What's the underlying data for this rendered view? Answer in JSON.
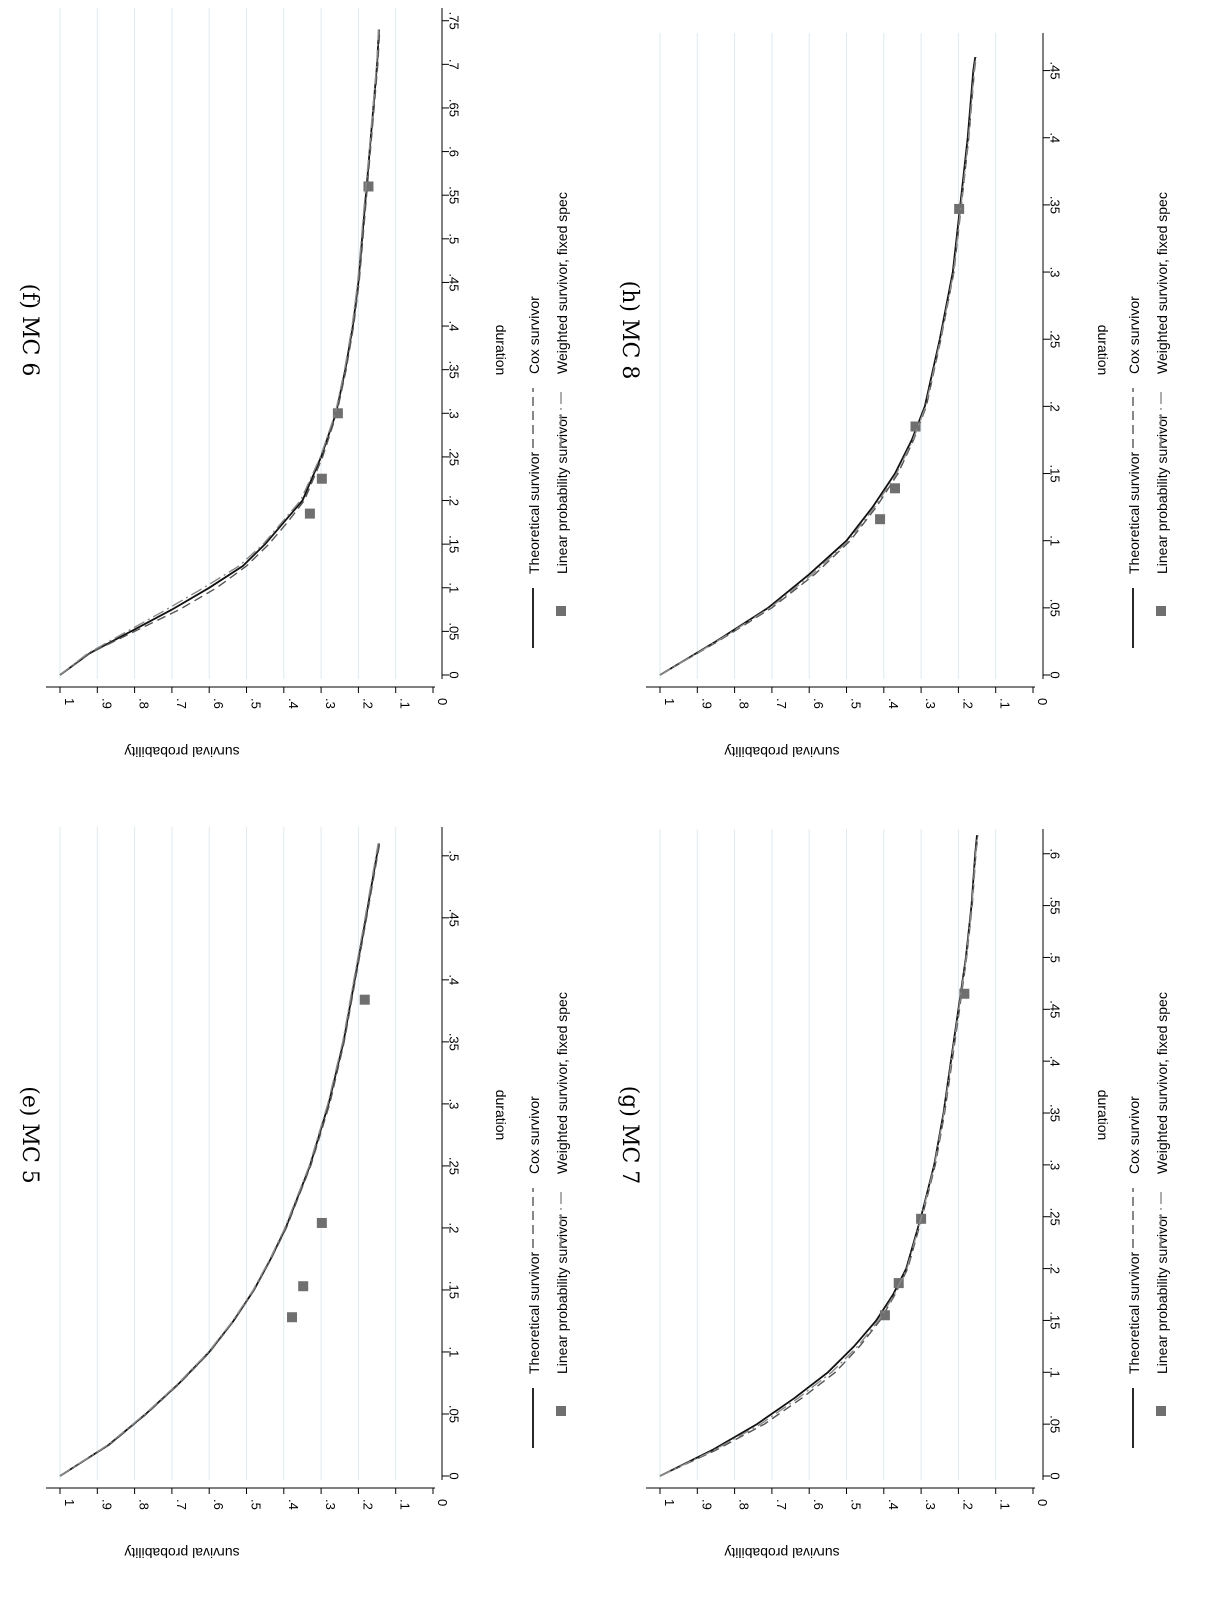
{
  "chart_data": [
    {
      "type": "line",
      "title": "(e) MC 5",
      "xlabel": "duration",
      "ylabel": "survival probability",
      "xlim": [
        0,
        0.52
      ],
      "ylim": [
        0,
        1
      ],
      "xticks": [
        0,
        0.05,
        0.1,
        0.15,
        0.2,
        0.25,
        0.3,
        0.35,
        0.4,
        0.45,
        0.5
      ],
      "xtick_labels": [
        "0",
        ".05",
        ".1",
        ".15",
        ".2",
        ".25",
        ".3",
        ".35",
        ".4",
        ".45",
        ".5"
      ],
      "yticks": [
        0,
        0.1,
        0.2,
        0.3,
        0.4,
        0.5,
        0.6,
        0.7,
        0.8,
        0.9,
        1
      ],
      "ytick_labels": [
        "0",
        ".1",
        ".2",
        ".3",
        ".4",
        ".5",
        ".6",
        ".7",
        ".8",
        ".9",
        "1"
      ],
      "grid": true,
      "legend_position": "bottom",
      "series": [
        {
          "name": "Theoretical survivor",
          "style": "solid",
          "x": [
            0,
            0.025,
            0.05,
            0.075,
            0.1,
            0.125,
            0.15,
            0.175,
            0.2,
            0.25,
            0.3,
            0.35,
            0.4,
            0.45,
            0.51
          ],
          "y": [
            1,
            0.87,
            0.77,
            0.68,
            0.6,
            0.535,
            0.48,
            0.435,
            0.395,
            0.33,
            0.28,
            0.24,
            0.21,
            0.18,
            0.145
          ]
        },
        {
          "name": "Cox survivor",
          "style": "dashed",
          "x": [
            0,
            0.025,
            0.05,
            0.075,
            0.1,
            0.125,
            0.15,
            0.175,
            0.2,
            0.25,
            0.3,
            0.35,
            0.4,
            0.45,
            0.51
          ],
          "y": [
            1,
            0.868,
            0.768,
            0.678,
            0.598,
            0.534,
            0.479,
            0.434,
            0.393,
            0.328,
            0.277,
            0.238,
            0.208,
            0.178,
            0.143
          ]
        },
        {
          "name": "Linear probability survivor",
          "style": "marker",
          "x": [
            0.128,
            0.153,
            0.204,
            0.384
          ],
          "y": [
            0.378,
            0.348,
            0.298,
            0.183
          ]
        },
        {
          "name": "Weighted survivor, fixed spec",
          "style": "dashdot",
          "x": [
            0,
            0.025,
            0.05,
            0.075,
            0.1,
            0.125,
            0.15,
            0.175,
            0.2,
            0.25,
            0.3,
            0.35,
            0.4,
            0.45,
            0.51
          ],
          "y": [
            1,
            0.872,
            0.772,
            0.682,
            0.602,
            0.537,
            0.482,
            0.437,
            0.397,
            0.332,
            0.282,
            0.242,
            0.212,
            0.182,
            0.147
          ]
        }
      ]
    },
    {
      "type": "line",
      "title": "(f) MC 6",
      "xlabel": "duration",
      "ylabel": "survival probability",
      "xlim": [
        0,
        0.76
      ],
      "ylim": [
        0,
        1
      ],
      "xticks": [
        0,
        0.05,
        0.1,
        0.15,
        0.2,
        0.25,
        0.3,
        0.35,
        0.4,
        0.45,
        0.5,
        0.55,
        0.6,
        0.65,
        0.7,
        0.75
      ],
      "xtick_labels": [
        "0",
        ".05",
        ".1",
        ".15",
        ".2",
        ".25",
        ".3",
        ".35",
        ".4",
        ".45",
        ".5",
        ".55",
        ".6",
        ".65",
        ".7",
        ".75"
      ],
      "yticks": [
        0,
        0.1,
        0.2,
        0.3,
        0.4,
        0.5,
        0.6,
        0.7,
        0.8,
        0.9,
        1
      ],
      "ytick_labels": [
        "0",
        ".1",
        ".2",
        ".3",
        ".4",
        ".5",
        ".6",
        ".7",
        ".8",
        ".9",
        "1"
      ],
      "grid": true,
      "legend_position": "bottom",
      "series": [
        {
          "name": "Theoretical survivor",
          "style": "solid",
          "x": [
            0,
            0.025,
            0.05,
            0.075,
            0.1,
            0.125,
            0.15,
            0.175,
            0.2,
            0.25,
            0.3,
            0.35,
            0.4,
            0.45,
            0.5,
            0.55,
            0.6,
            0.65,
            0.7,
            0.74
          ],
          "y": [
            1,
            0.92,
            0.81,
            0.7,
            0.6,
            0.51,
            0.45,
            0.4,
            0.35,
            0.3,
            0.26,
            0.235,
            0.215,
            0.2,
            0.19,
            0.18,
            0.17,
            0.16,
            0.15,
            0.145
          ]
        },
        {
          "name": "Cox survivor",
          "style": "dashed",
          "x": [
            0,
            0.025,
            0.05,
            0.075,
            0.1,
            0.125,
            0.15,
            0.175,
            0.2,
            0.25,
            0.3,
            0.35,
            0.4,
            0.45,
            0.5,
            0.55,
            0.6,
            0.65,
            0.7,
            0.74
          ],
          "y": [
            1,
            0.92,
            0.8,
            0.68,
            0.58,
            0.5,
            0.44,
            0.39,
            0.345,
            0.296,
            0.258,
            0.233,
            0.213,
            0.198,
            0.188,
            0.178,
            0.168,
            0.158,
            0.148,
            0.143
          ]
        },
        {
          "name": "Linear probability survivor",
          "style": "marker",
          "x": [
            0.185,
            0.225,
            0.3,
            0.56
          ],
          "y": [
            0.33,
            0.298,
            0.255,
            0.173
          ]
        },
        {
          "name": "Weighted survivor, fixed spec",
          "style": "dashdot",
          "x": [
            0,
            0.025,
            0.05,
            0.075,
            0.1,
            0.125,
            0.15,
            0.175,
            0.2,
            0.25,
            0.3,
            0.35,
            0.4,
            0.45,
            0.5,
            0.55,
            0.6,
            0.65,
            0.7,
            0.74
          ],
          "y": [
            1,
            0.925,
            0.82,
            0.715,
            0.615,
            0.52,
            0.455,
            0.405,
            0.355,
            0.302,
            0.262,
            0.237,
            0.217,
            0.202,
            0.192,
            0.182,
            0.171,
            0.161,
            0.151,
            0.146
          ]
        }
      ]
    },
    {
      "type": "line",
      "title": "(g) MC 7",
      "xlabel": "duration",
      "ylabel": "survival probability",
      "xlim": [
        0,
        0.62
      ],
      "ylim": [
        0,
        1
      ],
      "xticks": [
        0,
        0.05,
        0.1,
        0.15,
        0.2,
        0.25,
        0.3,
        0.35,
        0.4,
        0.45,
        0.5,
        0.55,
        0.6
      ],
      "xtick_labels": [
        "0",
        ".05",
        ".1",
        ".15",
        ".2",
        ".25",
        ".3",
        ".35",
        ".4",
        ".45",
        ".5",
        ".55",
        ".6"
      ],
      "yticks": [
        0,
        0.1,
        0.2,
        0.3,
        0.4,
        0.5,
        0.6,
        0.7,
        0.8,
        0.9,
        1
      ],
      "ytick_labels": [
        "0",
        ".1",
        ".2",
        ".3",
        ".4",
        ".5",
        ".6",
        ".7",
        ".8",
        ".9",
        "1"
      ],
      "grid": true,
      "legend_position": "bottom",
      "series": [
        {
          "name": "Theoretical survivor",
          "style": "solid",
          "x": [
            0,
            0.025,
            0.05,
            0.075,
            0.1,
            0.125,
            0.15,
            0.175,
            0.2,
            0.25,
            0.3,
            0.35,
            0.4,
            0.45,
            0.5,
            0.55,
            0.6,
            0.618
          ],
          "y": [
            1,
            0.86,
            0.74,
            0.64,
            0.55,
            0.48,
            0.42,
            0.375,
            0.34,
            0.3,
            0.265,
            0.24,
            0.22,
            0.2,
            0.18,
            0.165,
            0.155,
            0.15
          ]
        },
        {
          "name": "Cox survivor",
          "style": "dashed",
          "x": [
            0,
            0.025,
            0.05,
            0.075,
            0.1,
            0.125,
            0.15,
            0.175,
            0.2,
            0.25,
            0.3,
            0.35,
            0.4,
            0.45,
            0.5,
            0.55,
            0.6,
            0.618
          ],
          "y": [
            1,
            0.85,
            0.72,
            0.62,
            0.53,
            0.465,
            0.41,
            0.37,
            0.336,
            0.297,
            0.262,
            0.237,
            0.217,
            0.197,
            0.178,
            0.163,
            0.153,
            0.148
          ]
        },
        {
          "name": "Linear probability survivor",
          "style": "marker",
          "x": [
            0.155,
            0.186,
            0.248,
            0.465
          ],
          "y": [
            0.397,
            0.36,
            0.3,
            0.184
          ]
        },
        {
          "name": "Weighted survivor, fixed spec",
          "style": "dashdot",
          "x": [
            0,
            0.025,
            0.05,
            0.075,
            0.1,
            0.125,
            0.15,
            0.175,
            0.2,
            0.25,
            0.3,
            0.35,
            0.4,
            0.45,
            0.5,
            0.55,
            0.6,
            0.618
          ],
          "y": [
            1,
            0.855,
            0.73,
            0.63,
            0.54,
            0.47,
            0.414,
            0.372,
            0.338,
            0.299,
            0.264,
            0.239,
            0.219,
            0.199,
            0.179,
            0.164,
            0.154,
            0.149
          ]
        }
      ]
    },
    {
      "type": "line",
      "title": "(h) MC 8",
      "xlabel": "duration",
      "ylabel": "survival probability",
      "xlim": [
        0,
        0.475
      ],
      "ylim": [
        0,
        1
      ],
      "xticks": [
        0,
        0.05,
        0.1,
        0.15,
        0.2,
        0.25,
        0.3,
        0.35,
        0.4,
        0.45
      ],
      "xtick_labels": [
        "0",
        ".05",
        ".1",
        ".15",
        ".2",
        ".25",
        ".3",
        ".35",
        ".4",
        ".45"
      ],
      "yticks": [
        0,
        0.1,
        0.2,
        0.3,
        0.4,
        0.5,
        0.6,
        0.7,
        0.8,
        0.9,
        1
      ],
      "ytick_labels": [
        "0",
        ".1",
        ".2",
        ".3",
        ".4",
        ".5",
        ".6",
        ".7",
        ".8",
        ".9",
        "1"
      ],
      "grid": true,
      "legend_position": "bottom",
      "series": [
        {
          "name": "Theoretical survivor",
          "style": "solid",
          "x": [
            0,
            0.025,
            0.05,
            0.075,
            0.1,
            0.125,
            0.15,
            0.175,
            0.2,
            0.25,
            0.3,
            0.35,
            0.4,
            0.45,
            0.46
          ],
          "y": [
            1,
            0.85,
            0.71,
            0.6,
            0.5,
            0.43,
            0.37,
            0.325,
            0.29,
            0.25,
            0.215,
            0.195,
            0.175,
            0.16,
            0.155
          ]
        },
        {
          "name": "Cox survivor",
          "style": "dashed",
          "x": [
            0,
            0.025,
            0.05,
            0.075,
            0.1,
            0.125,
            0.15,
            0.175,
            0.2,
            0.25,
            0.3,
            0.35,
            0.4,
            0.45,
            0.46
          ],
          "y": [
            1,
            0.845,
            0.7,
            0.585,
            0.49,
            0.42,
            0.362,
            0.32,
            0.286,
            0.247,
            0.212,
            0.192,
            0.172,
            0.157,
            0.152
          ]
        },
        {
          "name": "Linear probability survivor",
          "style": "marker",
          "x": [
            0.116,
            0.139,
            0.185,
            0.347
          ],
          "y": [
            0.41,
            0.37,
            0.315,
            0.198
          ]
        },
        {
          "name": "Weighted survivor, fixed spec",
          "style": "dashdot",
          "x": [
            0,
            0.025,
            0.05,
            0.075,
            0.1,
            0.125,
            0.15,
            0.175,
            0.2,
            0.25,
            0.3,
            0.35,
            0.4,
            0.45,
            0.46
          ],
          "y": [
            1,
            0.848,
            0.705,
            0.592,
            0.495,
            0.425,
            0.366,
            0.322,
            0.288,
            0.248,
            0.213,
            0.193,
            0.173,
            0.158,
            0.153
          ]
        }
      ]
    }
  ]
}
